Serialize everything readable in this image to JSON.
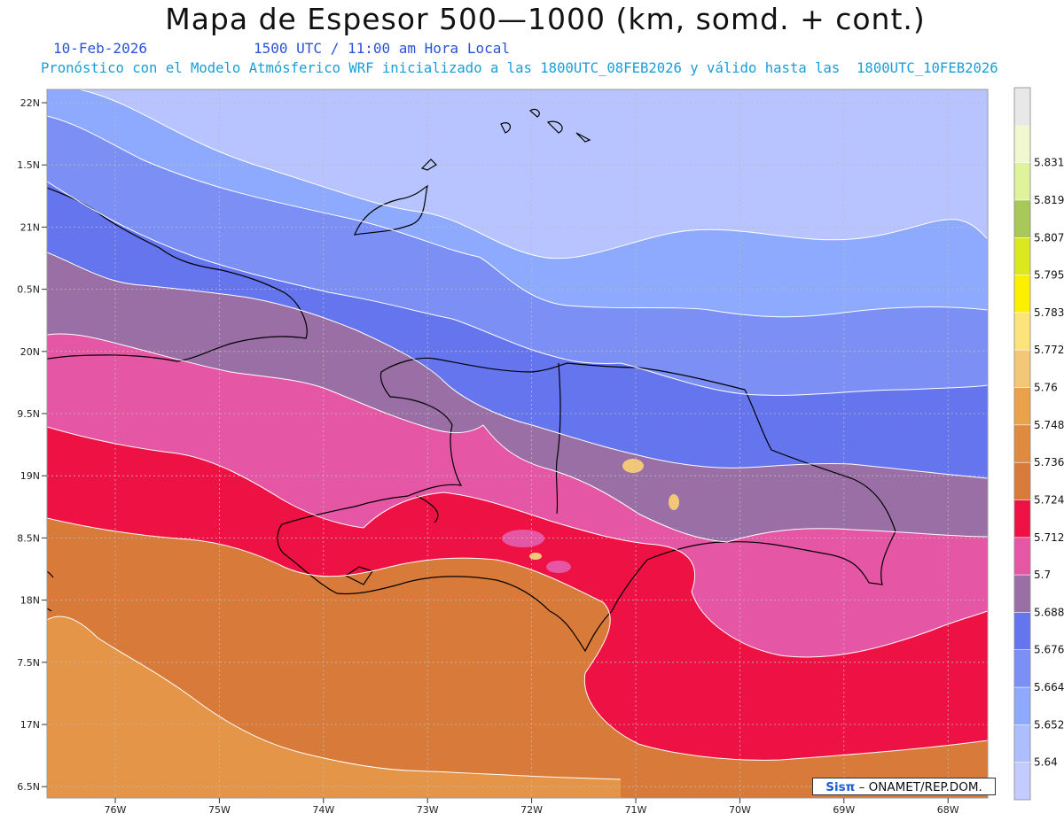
{
  "header": {
    "title": "Mapa de Espesor 500—1000 (km, somd. + cont.)",
    "date": "10-Feb-2026",
    "time": "1500 UTC / 11:00 am Hora Local",
    "forecast": "Pronóstico con el Modelo Atmósferico WRF inicializado a las 1800UTC_08FEB2026 y válido hasta las  1800UTC_10FEB2026"
  },
  "credit": {
    "brand": "Sisπ",
    "text": "– ONAMET/REP.DOM."
  },
  "axes": {
    "lat_labels": [
      "22N",
      "1.5N",
      "21N",
      "0.5N",
      "20N",
      "9.5N",
      "19N",
      "8.5N",
      "18N",
      "7.5N",
      "17N",
      "6.5N"
    ],
    "lon_labels": [
      "76W",
      "75W",
      "74W",
      "73W",
      "72W",
      "71W",
      "70W",
      "69W",
      "68W"
    ]
  },
  "colorbar": {
    "levels": [
      "5.64",
      "5.652",
      "5.664",
      "5.676",
      "5.688",
      "5.7",
      "5.712",
      "5.724",
      "5.736",
      "5.748",
      "5.76",
      "5.772",
      "5.783",
      "5.795",
      "5.807",
      "5.819",
      "5.831"
    ],
    "colors": [
      "#c4ccff",
      "#adbeff",
      "#8fa9ff",
      "#7b8ff5",
      "#6475ee",
      "#9a6fa6",
      "#e557a4",
      "#ee1144",
      "#d87a3a",
      "#df8a3e",
      "#eaa24a",
      "#f2c778",
      "#fde37c",
      "#fcf000",
      "#dbe81f",
      "#a9c85a",
      "#dff29c",
      "#f1f7cf",
      "#e8e8e8"
    ]
  },
  "map": {
    "colors": {
      "band1": "#b8c4ff",
      "band2": "#8eaaff",
      "band3": "#7b8ff5",
      "band4": "#6475ee",
      "band5": "#9a6fa6",
      "band6": "#e557a4",
      "band7": "#ee1144",
      "band8": "#d87a3a",
      "band9": "#e59547",
      "coast": "#000000",
      "contour": "#ffffff"
    }
  }
}
